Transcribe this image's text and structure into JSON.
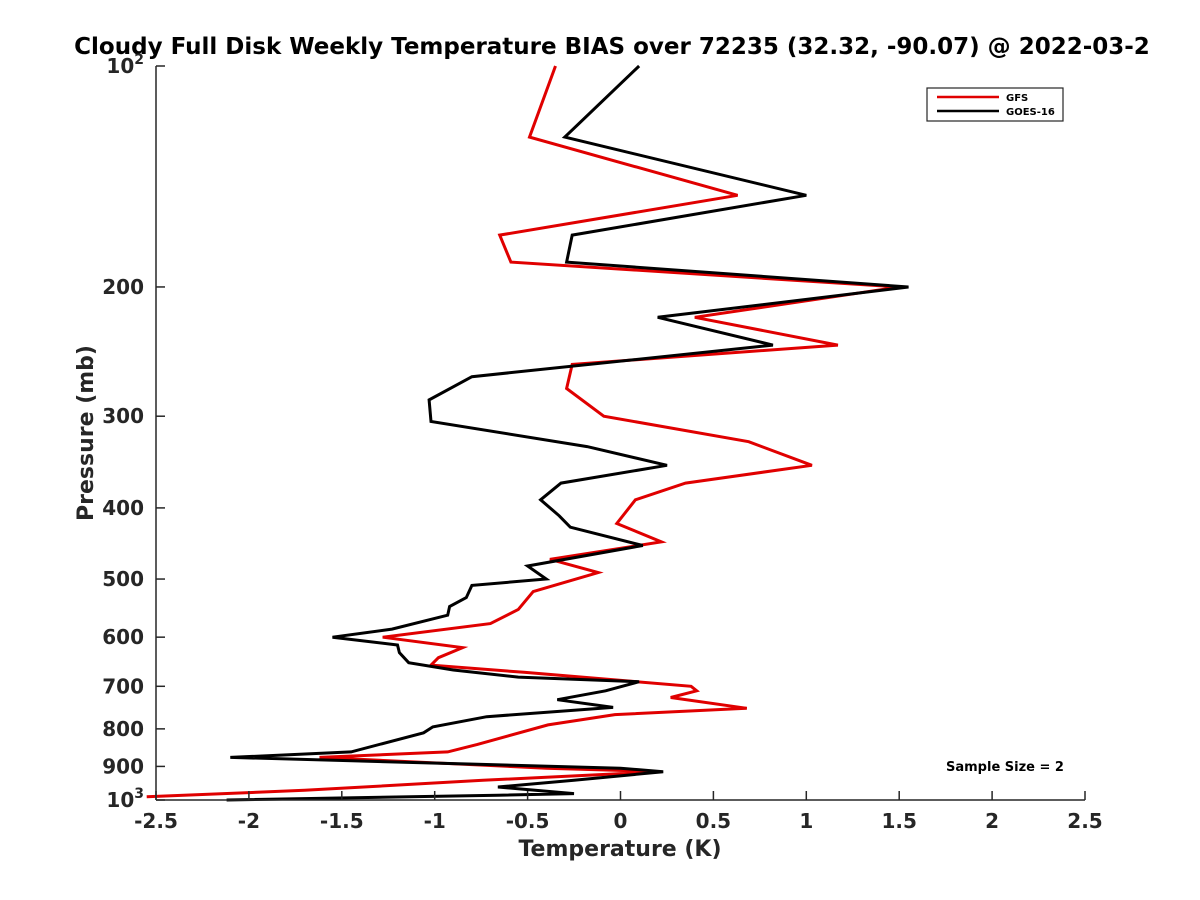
{
  "chart_data": {
    "type": "line",
    "title": "Cloudy Full Disk Weekly Temperature BIAS over 72235 (32.32, -90.07) @ 2022-03-2",
    "xlabel": "Temperature (K)",
    "ylabel": "Pressure (mb)",
    "xlim": [
      -2.5,
      2.5
    ],
    "ylim": [
      100,
      1000
    ],
    "yscale": "log",
    "y_reversed": true,
    "grid": false,
    "legend_position": "top-right",
    "x_ticks": [
      {
        "value": -2.5,
        "label": "-2.5"
      },
      {
        "value": -2,
        "label": "-2"
      },
      {
        "value": -1.5,
        "label": "-1.5"
      },
      {
        "value": -1,
        "label": "-1"
      },
      {
        "value": -0.5,
        "label": "-0.5"
      },
      {
        "value": 0,
        "label": "0"
      },
      {
        "value": 0.5,
        "label": "0.5"
      },
      {
        "value": 1,
        "label": "1"
      },
      {
        "value": 1.5,
        "label": "1.5"
      },
      {
        "value": 2,
        "label": "2"
      },
      {
        "value": 2.5,
        "label": "2.5"
      }
    ],
    "y_ticks": [
      {
        "value": 100,
        "base": "10",
        "exp": "2"
      },
      {
        "value": 200,
        "label": "200"
      },
      {
        "value": 300,
        "label": "300"
      },
      {
        "value": 400,
        "label": "400"
      },
      {
        "value": 500,
        "label": "500"
      },
      {
        "value": 600,
        "label": "600"
      },
      {
        "value": 700,
        "label": "700"
      },
      {
        "value": 800,
        "label": "800"
      },
      {
        "value": 900,
        "label": "900"
      },
      {
        "value": 1000,
        "base": "10",
        "exp": "3"
      }
    ],
    "series": [
      {
        "name": "GFS",
        "color": "#e00000",
        "points": [
          [
            -0.35,
            100
          ],
          [
            -0.49,
            125
          ],
          [
            0.63,
            150
          ],
          [
            -0.65,
            170
          ],
          [
            -0.59,
            185
          ],
          [
            1.5,
            200
          ],
          [
            0.4,
            220
          ],
          [
            1.17,
            240
          ],
          [
            -0.26,
            255
          ],
          [
            -0.29,
            275
          ],
          [
            -0.09,
            300
          ],
          [
            0.69,
            325
          ],
          [
            1.03,
            350
          ],
          [
            0.35,
            370
          ],
          [
            0.08,
            390
          ],
          [
            -0.02,
            420
          ],
          [
            0.22,
            445
          ],
          [
            -0.38,
            470
          ],
          [
            -0.12,
            490
          ],
          [
            -0.47,
            520
          ],
          [
            -0.55,
            550
          ],
          [
            -0.7,
            575
          ],
          [
            -1.28,
            600
          ],
          [
            -0.85,
            620
          ],
          [
            -0.98,
            640
          ],
          [
            -1.02,
            655
          ],
          [
            -0.52,
            670
          ],
          [
            0.38,
            700
          ],
          [
            0.41,
            710
          ],
          [
            0.27,
            725
          ],
          [
            0.68,
            750
          ],
          [
            -0.03,
            765
          ],
          [
            -0.39,
            790
          ],
          [
            -0.77,
            840
          ],
          [
            -0.93,
            860
          ],
          [
            -1.62,
            875
          ],
          [
            -0.4,
            905
          ],
          [
            0.22,
            915
          ],
          [
            -0.74,
            940
          ],
          [
            -1.7,
            970
          ],
          [
            -2.55,
            990
          ]
        ]
      },
      {
        "name": "GOES-16",
        "color": "#000000",
        "points": [
          [
            0.1,
            100
          ],
          [
            -0.3,
            125
          ],
          [
            1.0,
            150
          ],
          [
            -0.26,
            170
          ],
          [
            -0.29,
            185
          ],
          [
            1.55,
            200
          ],
          [
            0.2,
            220
          ],
          [
            0.82,
            240
          ],
          [
            -0.8,
            265
          ],
          [
            -1.03,
            285
          ],
          [
            -1.02,
            305
          ],
          [
            -0.18,
            330
          ],
          [
            0.25,
            350
          ],
          [
            -0.32,
            370
          ],
          [
            -0.43,
            390
          ],
          [
            -0.33,
            410
          ],
          [
            -0.27,
            425
          ],
          [
            0.12,
            450
          ],
          [
            -0.5,
            480
          ],
          [
            -0.4,
            500
          ],
          [
            -0.8,
            510
          ],
          [
            -0.83,
            530
          ],
          [
            -0.92,
            545
          ],
          [
            -0.93,
            560
          ],
          [
            -1.23,
            585
          ],
          [
            -1.55,
            600
          ],
          [
            -1.2,
            615
          ],
          [
            -1.19,
            630
          ],
          [
            -1.14,
            650
          ],
          [
            -0.9,
            665
          ],
          [
            -0.55,
            680
          ],
          [
            0.1,
            690
          ],
          [
            -0.08,
            710
          ],
          [
            -0.34,
            730
          ],
          [
            -0.04,
            748
          ],
          [
            -0.72,
            770
          ],
          [
            -1.01,
            795
          ],
          [
            -1.06,
            810
          ],
          [
            -1.45,
            860
          ],
          [
            -2.1,
            875
          ],
          [
            0.0,
            905
          ],
          [
            0.23,
            915
          ],
          [
            -0.25,
            940
          ],
          [
            -0.66,
            960
          ],
          [
            -0.25,
            980
          ],
          [
            -0.66,
            985
          ],
          [
            -2.12,
            1000
          ]
        ]
      }
    ],
    "annotations": [
      "Sample Size = 2"
    ]
  }
}
